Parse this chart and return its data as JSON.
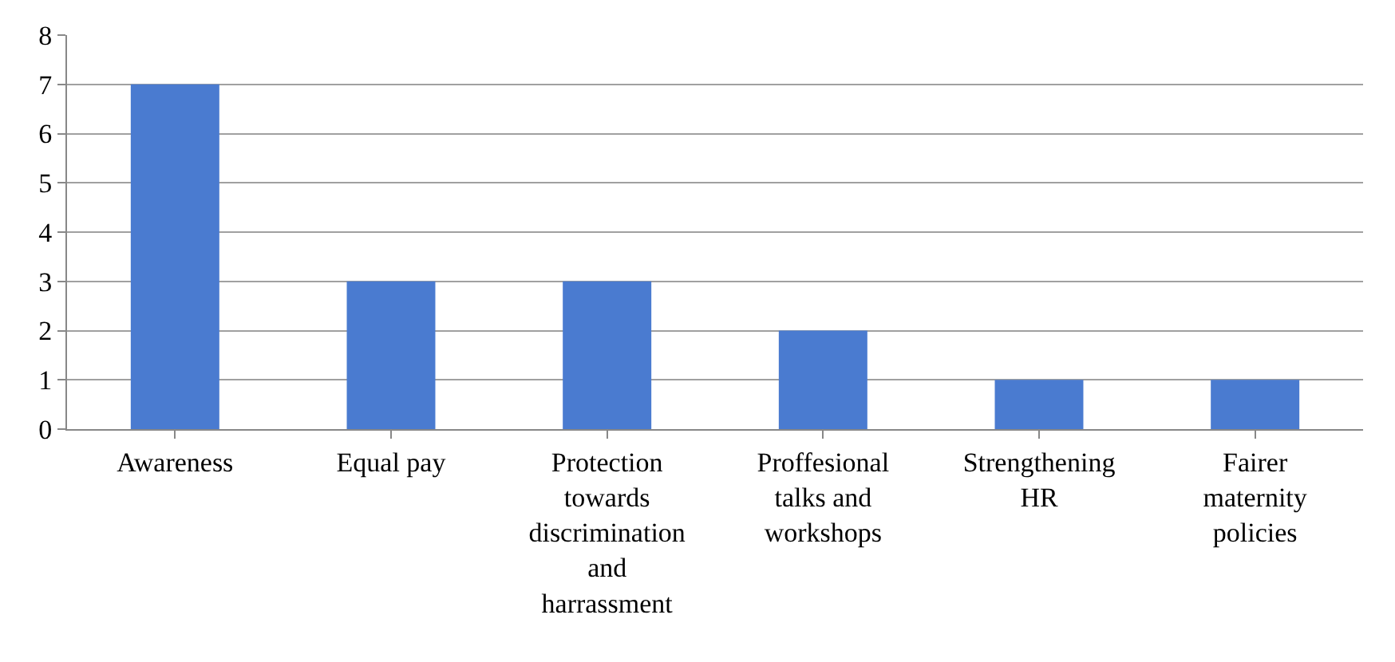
{
  "chart_data": {
    "type": "bar",
    "categories": [
      "Awareness",
      "Equal pay",
      "Protection towards discrimination and harrassment",
      "Proffesional talks and workshops",
      "Strengthening HR",
      "Fairer maternity policies"
    ],
    "values": [
      7,
      3,
      3,
      2,
      1,
      1
    ],
    "color": "#4a7bd0",
    "ylim": [
      0,
      8
    ],
    "yticks": [
      0,
      1,
      2,
      3,
      4,
      5,
      6,
      7,
      8
    ],
    "grid": "y",
    "legend": false
  }
}
